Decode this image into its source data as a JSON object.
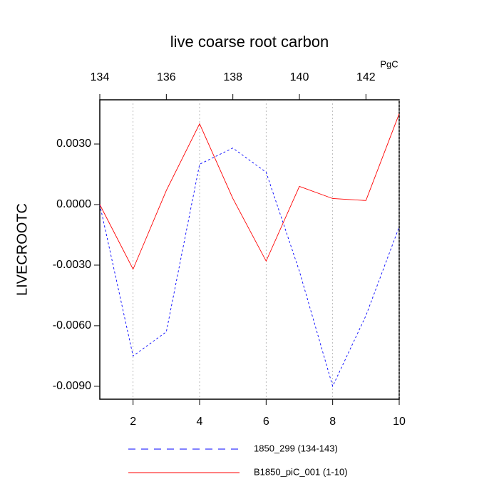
{
  "chart_data": {
    "type": "line",
    "title": "live coarse root carbon",
    "ylabel": "LIVECROOTC",
    "x2_annotation": "PgC",
    "xlim": [
      1,
      10
    ],
    "xticks": [
      2,
      4,
      6,
      8,
      10
    ],
    "xtick_color": "#ff0000",
    "x2lim": [
      134,
      143
    ],
    "x2ticks": [
      134,
      136,
      138,
      140,
      142
    ],
    "x2tick_color": "#0000ff",
    "ylim": [
      -0.00964,
      0.00519
    ],
    "yticks": [
      {
        "value": 0.003,
        "label": "0.0030"
      },
      {
        "value": 0,
        "label": "0.0000"
      },
      {
        "value": -0.003,
        "label": "-0.0030"
      },
      {
        "value": -0.006,
        "label": "-0.0060"
      },
      {
        "value": -0.009,
        "label": "-0.0090"
      }
    ],
    "grid": true,
    "series": [
      {
        "name": "1850_299 (134-143)",
        "color": "#0000ff",
        "dash": true,
        "axis": "x2",
        "x": [
          134,
          135,
          136,
          137,
          138,
          139,
          140,
          141,
          142,
          143
        ],
        "values": [
          0,
          -0.0075,
          -0.0063,
          0.002,
          0.0028,
          0.0016,
          -0.0033,
          -0.009,
          -0.0055,
          -0.0011
        ]
      },
      {
        "name": "B1850_piC_001 (1-10)",
        "color": "#ff0000",
        "dash": false,
        "x": [
          1,
          2,
          3,
          4,
          5,
          6,
          7,
          8,
          9,
          10
        ],
        "values": [
          0,
          -0.0032,
          0.0007,
          0.004,
          0.0003,
          -0.0028,
          0.0009,
          0.0003,
          0.0002,
          0.0045
        ]
      }
    ]
  }
}
